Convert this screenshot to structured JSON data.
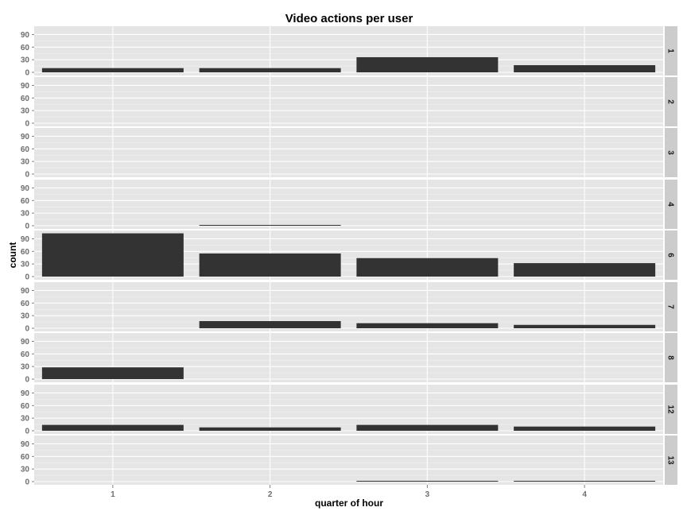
{
  "chart_data": {
    "type": "bar",
    "title": "Video actions per user",
    "xlabel": "quarter of hour",
    "ylabel": "count",
    "categories": [
      "1",
      "2",
      "3",
      "4"
    ],
    "yticks": [
      "0",
      "30",
      "60",
      "90"
    ],
    "ylim": [
      0,
      106
    ],
    "grid": true,
    "facet_strip": "right",
    "bar_color": "#333333",
    "panel_background": "#e5e5e5",
    "strip_background": "#cccccc",
    "panels": [
      {
        "label": "1",
        "values": [
          10,
          10,
          36,
          17
        ]
      },
      {
        "label": "2",
        "values": [
          0,
          0,
          0,
          0
        ]
      },
      {
        "label": "3",
        "values": [
          0,
          0,
          0,
          0
        ]
      },
      {
        "label": "4",
        "values": [
          0,
          1,
          0,
          0
        ]
      },
      {
        "label": "6",
        "values": [
          103,
          55,
          44,
          32
        ]
      },
      {
        "label": "7",
        "values": [
          0,
          17,
          12,
          8
        ]
      },
      {
        "label": "8",
        "values": [
          0,
          0,
          0,
          0
        ],
        "extra_values": [
          28,
          0,
          0,
          0
        ]
      },
      {
        "label": "12",
        "values": [
          14,
          8,
          14,
          10
        ]
      },
      {
        "label": "13",
        "values": [
          0,
          0,
          1,
          1
        ]
      }
    ]
  }
}
